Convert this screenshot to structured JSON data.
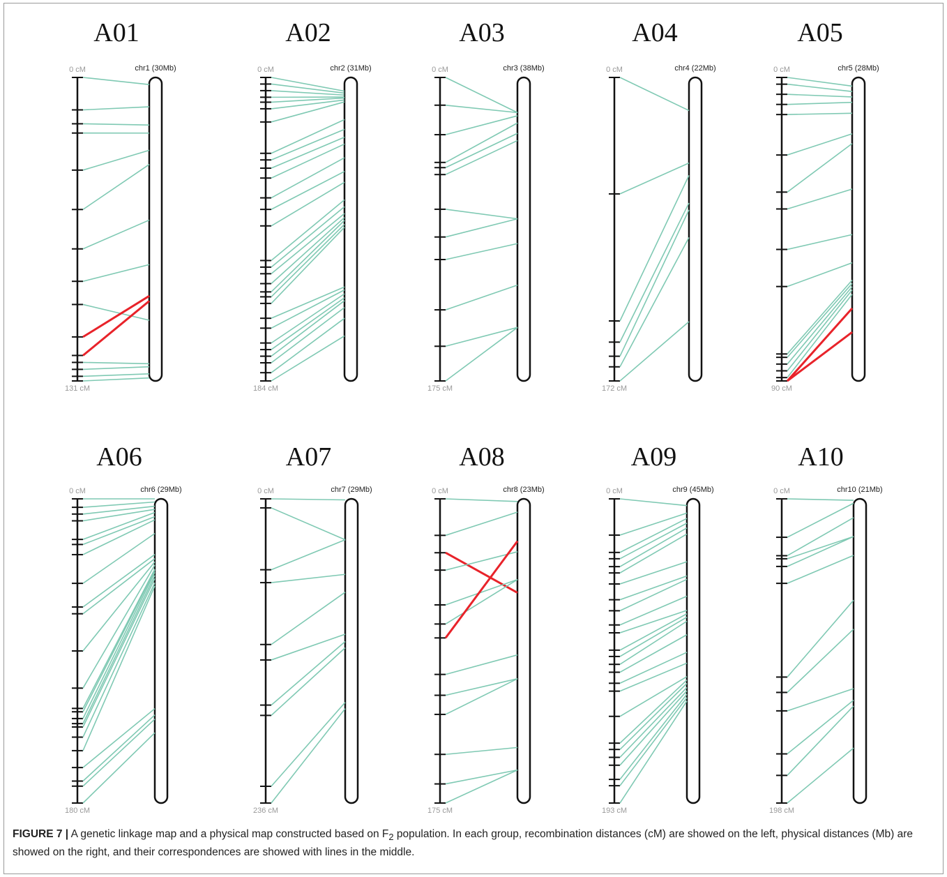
{
  "figure": {
    "link_color": "#7fc9b3",
    "inversion_color": "#e8232a",
    "panels": [
      {
        "title": "A01",
        "chromosome": {
          "label": "chr1 (30Mb)",
          "length_Mb": 30
        },
        "axis_ticks": [
          {
            "value": 0,
            "label": "0 cM"
          },
          {
            "value": 131,
            "label": "131 cM"
          }
        ],
        "markers": [
          [
            0,
            0.7
          ],
          [
            14,
            2.9
          ],
          [
            20,
            4.7
          ],
          [
            24,
            5.5
          ],
          [
            40,
            7.2
          ],
          [
            57,
            8.6
          ],
          [
            74,
            14.1
          ],
          [
            88,
            18.5
          ],
          [
            98,
            24.0
          ],
          [
            112,
            21.6
          ],
          [
            120,
            22.1
          ],
          [
            123,
            28.3
          ],
          [
            126,
            28.6
          ],
          [
            129,
            29.3
          ],
          [
            131,
            29.7
          ]
        ],
        "inverted_markers": [
          9,
          10
        ]
      },
      {
        "title": "A02",
        "chromosome": {
          "label": "chr2 (31Mb)",
          "length_Mb": 31
        },
        "axis_ticks": [
          {
            "value": 0,
            "label": "0 cM"
          },
          {
            "value": 184,
            "label": "184 cM"
          }
        ],
        "markers": [
          [
            0,
            1.4
          ],
          [
            4,
            1.6
          ],
          [
            8,
            1.8
          ],
          [
            12,
            2.0
          ],
          [
            15,
            2.1
          ],
          [
            19,
            2.3
          ],
          [
            27,
            2.5
          ],
          [
            46,
            4.3
          ],
          [
            50,
            5.3
          ],
          [
            55,
            6.1
          ],
          [
            61,
            6.8
          ],
          [
            73,
            8.2
          ],
          [
            80,
            9.6
          ],
          [
            90,
            10.7
          ],
          [
            111,
            12.5
          ],
          [
            115,
            13.2
          ],
          [
            119,
            13.9
          ],
          [
            125,
            14.3
          ],
          [
            130,
            14.6
          ],
          [
            133,
            15.0
          ],
          [
            137,
            15.3
          ],
          [
            146,
            21.4
          ],
          [
            152,
            21.7
          ],
          [
            161,
            22.1
          ],
          [
            165,
            22.5
          ],
          [
            169,
            22.8
          ],
          [
            173,
            23.5
          ],
          [
            179,
            24.6
          ],
          [
            184,
            26.4
          ]
        ],
        "inverted_markers": []
      },
      {
        "title": "A03",
        "chromosome": {
          "label": "chr3 (38Mb)",
          "length_Mb": 38
        },
        "axis_ticks": [
          {
            "value": 0,
            "label": "0 cM"
          },
          {
            "value": 175,
            "label": "175 cM"
          }
        ],
        "markers": [
          [
            0,
            4.4
          ],
          [
            16,
            4.4
          ],
          [
            33,
            4.8
          ],
          [
            49,
            5.7
          ],
          [
            52,
            7.0
          ],
          [
            56,
            7.9
          ],
          [
            76,
            17.7
          ],
          [
            92,
            17.7
          ],
          [
            105,
            20.8
          ],
          [
            134,
            26.0
          ],
          [
            155,
            31.3
          ],
          [
            175,
            31.3
          ]
        ],
        "inverted_markers": []
      },
      {
        "title": "A04",
        "chromosome": {
          "label": "chr4 (22Mb)",
          "length_Mb": 22
        },
        "axis_ticks": [
          {
            "value": 0,
            "label": "0 cM"
          },
          {
            "value": 172,
            "label": "172 cM"
          }
        ],
        "markers": [
          [
            0,
            2.4
          ],
          [
            66,
            6.2
          ],
          [
            138,
            7.1
          ],
          [
            150,
            9.1
          ],
          [
            158,
            9.6
          ],
          [
            164,
            11.6
          ],
          [
            172,
            17.7
          ]
        ],
        "inverted_markers": []
      },
      {
        "title": "A05",
        "chromosome": {
          "label": "chr5 (28Mb)",
          "length_Mb": 28
        },
        "axis_ticks": [
          {
            "value": 0,
            "label": "0 cM"
          },
          {
            "value": 90,
            "label": "90 cM"
          }
        ],
        "markers": [
          [
            0,
            0.8
          ],
          [
            2,
            1.3
          ],
          [
            5,
            1.8
          ],
          [
            8,
            2.3
          ],
          [
            11,
            3.3
          ],
          [
            23,
            5.2
          ],
          [
            34,
            6.1
          ],
          [
            39,
            10.3
          ],
          [
            51,
            14.5
          ],
          [
            62,
            17.1
          ],
          [
            82,
            18.7
          ],
          [
            83,
            19.0
          ],
          [
            85,
            19.3
          ],
          [
            87,
            19.6
          ],
          [
            89,
            20.0
          ],
          [
            90,
            21.3
          ],
          [
            90,
            23.5
          ]
        ],
        "inverted_markers": [
          15,
          16
        ]
      },
      {
        "title": "A06",
        "chromosome": {
          "label": "chr6 (29Mb)",
          "length_Mb": 29
        },
        "axis_ticks": [
          {
            "value": 0,
            "label": "0 cM"
          },
          {
            "value": 180,
            "label": "180 cM"
          }
        ],
        "markers": [
          [
            0,
            0
          ],
          [
            5,
            0.3
          ],
          [
            9,
            0.7
          ],
          [
            13,
            1.0
          ],
          [
            24,
            1.3
          ],
          [
            27,
            1.7
          ],
          [
            33,
            2.0
          ],
          [
            50,
            3.3
          ],
          [
            64,
            5.3
          ],
          [
            68,
            5.7
          ],
          [
            90,
            6.0
          ],
          [
            112,
            6.3
          ],
          [
            124,
            6.7
          ],
          [
            126,
            6.8
          ],
          [
            130,
            7.0
          ],
          [
            133,
            7.3
          ],
          [
            135,
            7.6
          ],
          [
            141,
            8.0
          ],
          [
            149,
            8.3
          ],
          [
            159,
            20.0
          ],
          [
            167,
            20.6
          ],
          [
            170,
            21.0
          ],
          [
            180,
            22.3
          ]
        ],
        "inverted_markers": []
      },
      {
        "title": "A07",
        "chromosome": {
          "label": "chr7 (29Mb)",
          "length_Mb": 29
        },
        "axis_ticks": [
          {
            "value": 0,
            "label": "0 cM"
          },
          {
            "value": 236,
            "label": "236 cM"
          }
        ],
        "markers": [
          [
            0,
            0.1
          ],
          [
            7,
            3.9
          ],
          [
            55,
            3.9
          ],
          [
            65,
            7.2
          ],
          [
            113,
            8.9
          ],
          [
            125,
            12.9
          ],
          [
            160,
            13.6
          ],
          [
            168,
            14.2
          ],
          [
            223,
            19.4
          ],
          [
            236,
            20.0
          ]
        ],
        "inverted_markers": []
      },
      {
        "title": "A08",
        "chromosome": {
          "label": "chr8 (23Mb)",
          "length_Mb": 23
        },
        "axis_ticks": [
          {
            "value": 0,
            "label": "0 cM"
          },
          {
            "value": 175,
            "label": "175 cM"
          }
        ],
        "markers": [
          [
            0,
            0.2
          ],
          [
            21,
            1.0
          ],
          [
            31,
            7.1
          ],
          [
            41,
            4.0
          ],
          [
            61,
            6.1
          ],
          [
            72,
            6.1
          ],
          [
            80,
            3.2
          ],
          [
            101,
            11.8
          ],
          [
            113,
            13.6
          ],
          [
            124,
            13.6
          ],
          [
            147,
            18.8
          ],
          [
            164,
            20.5
          ],
          [
            175,
            20.5
          ]
        ],
        "inverted_markers": [
          2,
          6
        ]
      },
      {
        "title": "A09",
        "chromosome": {
          "label": "chr9 (45Mb)",
          "length_Mb": 45
        },
        "axis_ticks": [
          {
            "value": 0,
            "label": "0 cM"
          },
          {
            "value": 193,
            "label": "193 cM"
          }
        ],
        "markers": [
          [
            0,
            1.0
          ],
          [
            23,
            2.1
          ],
          [
            34,
            2.9
          ],
          [
            38,
            3.6
          ],
          [
            43,
            4.3
          ],
          [
            47,
            5.2
          ],
          [
            54,
            9.3
          ],
          [
            64,
            11.4
          ],
          [
            71,
            11.9
          ],
          [
            80,
            14.4
          ],
          [
            85,
            16.5
          ],
          [
            96,
            17.0
          ],
          [
            100,
            17.5
          ],
          [
            105,
            18.1
          ],
          [
            110,
            20.1
          ],
          [
            117,
            22.7
          ],
          [
            122,
            24.3
          ],
          [
            138,
            26.3
          ],
          [
            155,
            26.8
          ],
          [
            159,
            27.3
          ],
          [
            164,
            27.9
          ],
          [
            169,
            28.4
          ],
          [
            178,
            28.9
          ],
          [
            182,
            29.4
          ],
          [
            193,
            29.9
          ]
        ],
        "inverted_markers": []
      },
      {
        "title": "A10",
        "chromosome": {
          "label": "chr10 (21Mb)",
          "length_Mb": 21
        },
        "axis_ticks": [
          {
            "value": 0,
            "label": "0 cM"
          },
          {
            "value": 198,
            "label": "198 cM"
          }
        ],
        "markers": [
          [
            0,
            0.1
          ],
          [
            25,
            0.3
          ],
          [
            37,
            1.3
          ],
          [
            39,
            2.6
          ],
          [
            44,
            2.6
          ],
          [
            55,
            3.9
          ],
          [
            116,
            7.0
          ],
          [
            126,
            9.0
          ],
          [
            138,
            13.1
          ],
          [
            166,
            13.9
          ],
          [
            180,
            14.3
          ],
          [
            198,
            17.2
          ]
        ],
        "inverted_markers": []
      }
    ],
    "caption": {
      "label": "FIGURE 7 |",
      "text_before": " A genetic linkage map and a physical map constructed based on F",
      "subscript": "2",
      "text_after": " population. In each group, recombination distances (cM) are showed on the left, physical distances (Mb) are showed on the right, and their correspondences are showed with lines in the middle."
    }
  }
}
